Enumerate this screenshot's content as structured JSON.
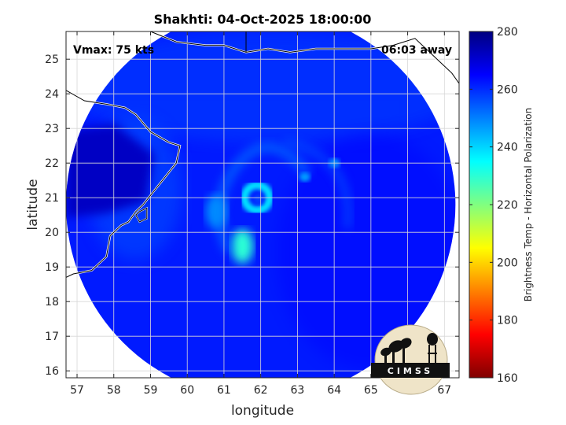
{
  "chart_data": {
    "type": "heatmap",
    "title": "Shakhti: 04-Oct-2025 18:00:00",
    "xlabel": "longitude",
    "ylabel": "latitude",
    "xlim": [
      56.7,
      67.4
    ],
    "ylim": [
      15.8,
      25.8
    ],
    "xticks": [
      "57",
      "58",
      "59",
      "60",
      "61",
      "62",
      "63",
      "64",
      "65",
      "66",
      "67"
    ],
    "yticks": [
      "16",
      "17",
      "18",
      "19",
      "20",
      "21",
      "22",
      "23",
      "24",
      "25"
    ],
    "grid": true,
    "annotations": {
      "vmax": "Vmax: 75 kts",
      "time_away": "06:03 away"
    },
    "colorbar": {
      "label": "Brightness Temp - Horizontal Polarization",
      "range": [
        160,
        280
      ],
      "ticks": [
        "160",
        "180",
        "200",
        "220",
        "240",
        "260",
        "280"
      ],
      "colormap": "jet",
      "colors": [
        "#800000",
        "#ff0000",
        "#ff8000",
        "#ffff00",
        "#80ff80",
        "#00ffff",
        "#0080ff",
        "#0000ff",
        "#000080"
      ]
    },
    "field": {
      "background_temp": 262,
      "swath_center": [
        62.0,
        20.8
      ],
      "swath_radius_deg": 5.3,
      "features": [
        {
          "name": "eyewall ring",
          "lon": 61.9,
          "lat": 21.0,
          "temp": 238
        },
        {
          "name": "rainband",
          "lon": 61.5,
          "lat": 19.6,
          "temp": 230
        },
        {
          "name": "land",
          "lon": 57.6,
          "lat": 21.8,
          "temp": 272
        },
        {
          "name": "rainband",
          "lon": 60.8,
          "lat": 20.6,
          "temp": 248
        },
        {
          "name": "convection",
          "lon": 64.0,
          "lat": 22.0,
          "temp": 247
        },
        {
          "name": "convection",
          "lon": 63.2,
          "lat": 21.6,
          "temp": 246
        }
      ]
    }
  },
  "logo": {
    "text": "CIMSS"
  }
}
